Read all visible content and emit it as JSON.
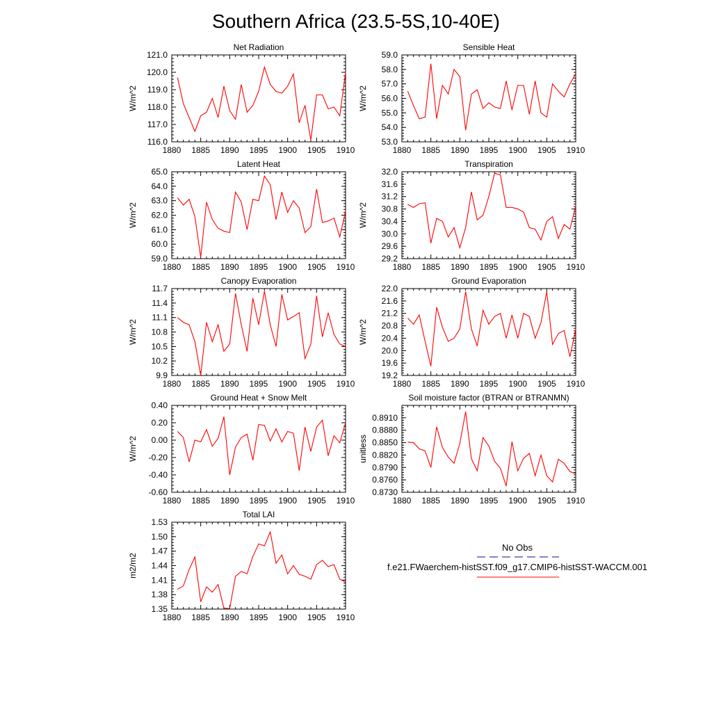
{
  "figure": {
    "title": "Southern Africa (23.5-5S,10-40E)",
    "line_color": "#ff0000"
  },
  "legend": {
    "obs_label": "No Obs",
    "obs_color": "#3a3aaa",
    "model_label": "f.e21.FWaerchem-histSST.f09_g17.CMIP6-histSST-WACCM.001",
    "model_color": "#ff0000"
  },
  "chart_data": [
    {
      "type": "line",
      "title": "Net Radiation",
      "ylabel": "W/m^2",
      "xlim": [
        1880,
        1910
      ],
      "x_ticks": [
        "1880",
        "1885",
        "1890",
        "1895",
        "1900",
        "1905",
        "1910"
      ],
      "ylim": [
        116.0,
        121.0
      ],
      "y_ticks": [
        "116.0",
        "117.0",
        "118.0",
        "119.0",
        "120.0",
        "121.0"
      ],
      "x": [
        1881,
        1882,
        1883,
        1884,
        1885,
        1886,
        1887,
        1888,
        1889,
        1890,
        1891,
        1892,
        1893,
        1894,
        1895,
        1896,
        1897,
        1898,
        1899,
        1900,
        1901,
        1902,
        1903,
        1904,
        1905,
        1906,
        1907,
        1908,
        1909,
        1910
      ],
      "values": [
        119.7,
        118.2,
        117.4,
        116.6,
        117.5,
        117.7,
        118.5,
        117.4,
        119.2,
        117.8,
        117.3,
        119.3,
        117.7,
        118.1,
        118.9,
        120.3,
        119.3,
        118.9,
        118.8,
        119.2,
        119.9,
        117.1,
        118.1,
        116.1,
        118.7,
        118.7,
        117.9,
        118.0,
        117.5,
        120.0
      ]
    },
    {
      "type": "line",
      "title": "Sensible Heat",
      "ylabel": "W/m^2",
      "xlim": [
        1880,
        1910
      ],
      "x_ticks": [
        "1880",
        "1885",
        "1890",
        "1895",
        "1900",
        "1905",
        "1910"
      ],
      "ylim": [
        53.0,
        59.0
      ],
      "y_ticks": [
        "53.0",
        "54.0",
        "55.0",
        "56.0",
        "57.0",
        "58.0",
        "59.0"
      ],
      "x": [
        1881,
        1882,
        1883,
        1884,
        1885,
        1886,
        1887,
        1888,
        1889,
        1890,
        1891,
        1892,
        1893,
        1894,
        1895,
        1896,
        1897,
        1898,
        1899,
        1900,
        1901,
        1902,
        1903,
        1904,
        1905,
        1906,
        1907,
        1908,
        1909,
        1910
      ],
      "values": [
        56.5,
        55.5,
        54.6,
        54.7,
        58.4,
        54.6,
        56.9,
        56.3,
        58.0,
        57.5,
        53.8,
        56.3,
        56.6,
        55.3,
        55.7,
        55.4,
        55.3,
        57.2,
        55.2,
        56.9,
        56.9,
        54.9,
        57.2,
        55.0,
        54.7,
        57.0,
        56.5,
        56.1,
        57.0,
        57.7
      ]
    },
    {
      "type": "line",
      "title": "Latent Heat",
      "ylabel": "W/m^2",
      "xlim": [
        1880,
        1910
      ],
      "x_ticks": [
        "1880",
        "1885",
        "1890",
        "1895",
        "1900",
        "1905",
        "1910"
      ],
      "ylim": [
        59.0,
        65.0
      ],
      "y_ticks": [
        "59.0",
        "60.0",
        "61.0",
        "62.0",
        "63.0",
        "64.0",
        "65.0"
      ],
      "x": [
        1881,
        1882,
        1883,
        1884,
        1885,
        1886,
        1887,
        1888,
        1889,
        1890,
        1891,
        1892,
        1893,
        1894,
        1895,
        1896,
        1897,
        1898,
        1899,
        1900,
        1901,
        1902,
        1903,
        1904,
        1905,
        1906,
        1907,
        1908,
        1909,
        1910
      ],
      "values": [
        63.2,
        62.7,
        63.1,
        61.9,
        59.1,
        62.9,
        61.7,
        61.1,
        60.9,
        60.8,
        63.6,
        62.9,
        61.0,
        63.1,
        63.0,
        64.7,
        64.1,
        61.7,
        63.6,
        62.2,
        63.0,
        62.5,
        60.8,
        61.2,
        63.8,
        61.5,
        61.6,
        61.8,
        60.5,
        62.3
      ]
    },
    {
      "type": "line",
      "title": "Transpiration",
      "ylabel": "W/m^2",
      "xlim": [
        1880,
        1910
      ],
      "x_ticks": [
        "1880",
        "1885",
        "1890",
        "1895",
        "1900",
        "1905",
        "1910"
      ],
      "ylim": [
        29.2,
        32.0
      ],
      "y_ticks": [
        "29.2",
        "29.6",
        "30.0",
        "30.4",
        "30.8",
        "31.2",
        "31.6",
        "32.0"
      ],
      "x": [
        1881,
        1882,
        1883,
        1884,
        1885,
        1886,
        1887,
        1888,
        1889,
        1890,
        1891,
        1892,
        1893,
        1894,
        1895,
        1896,
        1897,
        1898,
        1899,
        1900,
        1901,
        1902,
        1903,
        1904,
        1905,
        1906,
        1907,
        1908,
        1909,
        1910
      ],
      "values": [
        30.95,
        30.85,
        30.97,
        31.0,
        29.7,
        30.5,
        30.4,
        29.9,
        30.2,
        29.55,
        30.2,
        31.35,
        30.45,
        30.6,
        31.2,
        31.95,
        31.9,
        30.85,
        30.85,
        30.8,
        30.7,
        30.2,
        30.15,
        29.8,
        30.4,
        30.55,
        29.85,
        30.3,
        30.15,
        30.9
      ]
    },
    {
      "type": "line",
      "title": "Canopy Evaporation",
      "ylabel": "W/m^2",
      "xlim": [
        1880,
        1910
      ],
      "x_ticks": [
        "1880",
        "1885",
        "1890",
        "1895",
        "1900",
        "1905",
        "1910"
      ],
      "ylim": [
        9.9,
        11.7
      ],
      "y_ticks": [
        "9.9",
        "10.2",
        "10.5",
        "10.8",
        "11.1",
        "11.4",
        "11.7"
      ],
      "x": [
        1881,
        1882,
        1883,
        1884,
        1885,
        1886,
        1887,
        1888,
        1889,
        1890,
        1891,
        1892,
        1893,
        1894,
        1895,
        1896,
        1897,
        1898,
        1899,
        1900,
        1901,
        1902,
        1903,
        1904,
        1905,
        1906,
        1907,
        1908,
        1909,
        1910
      ],
      "values": [
        11.1,
        11.0,
        10.95,
        10.6,
        9.9,
        11.0,
        10.6,
        10.95,
        10.4,
        10.55,
        11.6,
        10.95,
        10.4,
        11.5,
        10.95,
        11.65,
        10.95,
        10.5,
        11.58,
        11.05,
        11.12,
        11.2,
        10.25,
        10.55,
        11.55,
        10.7,
        11.2,
        10.75,
        10.55,
        10.5
      ]
    },
    {
      "type": "line",
      "title": "Ground Evaporation",
      "ylabel": "W/m^2",
      "xlim": [
        1880,
        1910
      ],
      "x_ticks": [
        "1880",
        "1885",
        "1890",
        "1895",
        "1900",
        "1905",
        "1910"
      ],
      "ylim": [
        19.2,
        22.0
      ],
      "y_ticks": [
        "19.2",
        "19.6",
        "20.0",
        "20.4",
        "20.8",
        "21.2",
        "21.6",
        "22.0"
      ],
      "x": [
        1881,
        1882,
        1883,
        1884,
        1885,
        1886,
        1887,
        1888,
        1889,
        1890,
        1891,
        1892,
        1893,
        1894,
        1895,
        1896,
        1897,
        1898,
        1899,
        1900,
        1901,
        1902,
        1903,
        1904,
        1905,
        1906,
        1907,
        1908,
        1909,
        1910
      ],
      "values": [
        21.05,
        20.85,
        21.15,
        20.3,
        19.5,
        21.4,
        20.75,
        20.3,
        20.4,
        20.7,
        21.9,
        20.7,
        20.15,
        21.3,
        20.85,
        21.1,
        21.2,
        20.4,
        21.15,
        20.4,
        21.2,
        21.1,
        20.4,
        20.9,
        21.9,
        20.2,
        20.55,
        20.65,
        19.8,
        20.7
      ]
    },
    {
      "type": "line",
      "title": "Ground Heat + Snow Melt",
      "ylabel": "W/m^2",
      "xlim": [
        1880,
        1910
      ],
      "x_ticks": [
        "1880",
        "1885",
        "1890",
        "1895",
        "1900",
        "1905",
        "1910"
      ],
      "ylim": [
        -0.6,
        0.4
      ],
      "y_ticks": [
        "-0.60",
        "-0.40",
        "-0.20",
        "0.00",
        "0.20",
        "0.40"
      ],
      "x": [
        1881,
        1882,
        1883,
        1884,
        1885,
        1886,
        1887,
        1888,
        1889,
        1890,
        1891,
        1892,
        1893,
        1894,
        1895,
        1896,
        1897,
        1898,
        1899,
        1900,
        1901,
        1902,
        1903,
        1904,
        1905,
        1906,
        1907,
        1908,
        1909,
        1910
      ],
      "values": [
        0.1,
        0.03,
        -0.25,
        0.0,
        -0.02,
        0.12,
        -0.07,
        0.02,
        0.27,
        -0.4,
        -0.08,
        0.03,
        0.07,
        -0.23,
        0.18,
        0.17,
        -0.01,
        0.13,
        -0.02,
        0.1,
        0.08,
        -0.35,
        0.15,
        -0.13,
        0.15,
        0.23,
        -0.18,
        0.05,
        -0.03,
        0.2
      ]
    },
    {
      "type": "line",
      "title": "Soil moisture factor (BTRAN or BTRANMN)",
      "ylabel": "unitless",
      "xlim": [
        1880,
        1910
      ],
      "x_ticks": [
        "1880",
        "1885",
        "1890",
        "1895",
        "1900",
        "1905",
        "1910"
      ],
      "ylim": [
        0.873,
        0.894
      ],
      "y_ticks": [
        "0.8730",
        "0.8760",
        "0.8790",
        "0.8820",
        "0.8850",
        "0.8880",
        "0.8910"
      ],
      "x": [
        1881,
        1882,
        1883,
        1884,
        1885,
        1886,
        1887,
        1888,
        1889,
        1890,
        1891,
        1892,
        1893,
        1894,
        1895,
        1896,
        1897,
        1898,
        1899,
        1900,
        1901,
        1902,
        1903,
        1904,
        1905,
        1906,
        1907,
        1908,
        1909,
        1910
      ],
      "values": [
        0.8851,
        0.885,
        0.8835,
        0.883,
        0.879,
        0.8888,
        0.8838,
        0.8815,
        0.88,
        0.8848,
        0.8925,
        0.8811,
        0.8782,
        0.8862,
        0.8842,
        0.8805,
        0.8788,
        0.8745,
        0.8852,
        0.8782,
        0.8812,
        0.8824,
        0.877,
        0.882,
        0.877,
        0.8755,
        0.881,
        0.88,
        0.878,
        0.8775
      ]
    },
    {
      "type": "line",
      "title": "Total LAI",
      "ylabel": "m2/m2",
      "xlim": [
        1880,
        1910
      ],
      "x_ticks": [
        "1880",
        "1885",
        "1890",
        "1895",
        "1900",
        "1905",
        "1910"
      ],
      "ylim": [
        1.35,
        1.53
      ],
      "y_ticks": [
        "1.35",
        "1.38",
        "1.41",
        "1.44",
        "1.47",
        "1.50",
        "1.53"
      ],
      "x": [
        1881,
        1882,
        1883,
        1884,
        1885,
        1886,
        1887,
        1888,
        1889,
        1890,
        1891,
        1892,
        1893,
        1894,
        1895,
        1896,
        1897,
        1898,
        1899,
        1900,
        1901,
        1902,
        1903,
        1904,
        1905,
        1906,
        1907,
        1908,
        1909,
        1910
      ],
      "values": [
        1.391,
        1.398,
        1.432,
        1.458,
        1.365,
        1.396,
        1.385,
        1.401,
        1.352,
        1.351,
        1.418,
        1.428,
        1.423,
        1.459,
        1.485,
        1.481,
        1.51,
        1.445,
        1.462,
        1.423,
        1.44,
        1.422,
        1.418,
        1.412,
        1.442,
        1.451,
        1.438,
        1.442,
        1.412,
        1.406
      ]
    }
  ]
}
